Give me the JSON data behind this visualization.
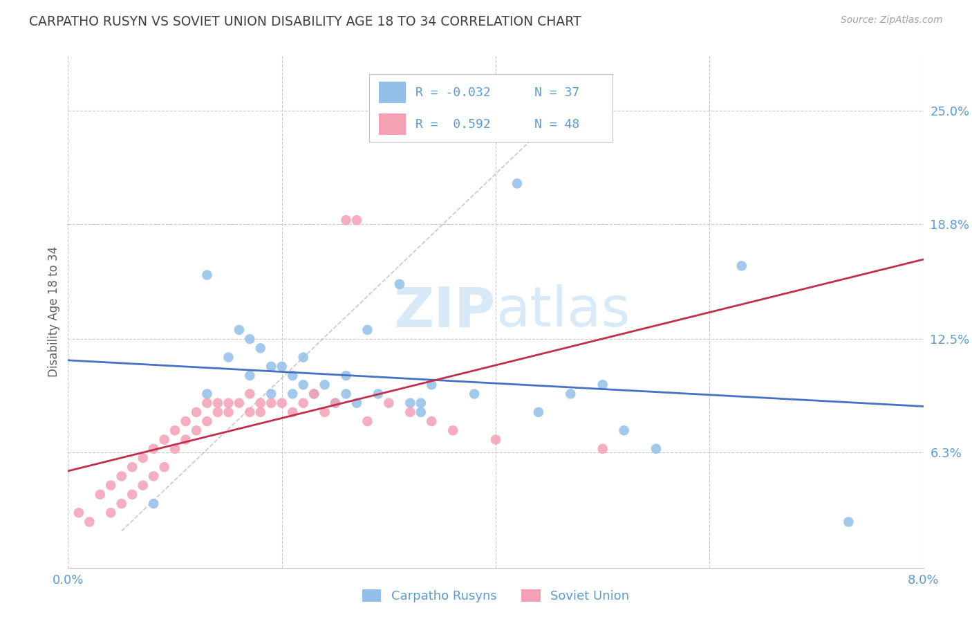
{
  "title": "CARPATHO RUSYN VS SOVIET UNION DISABILITY AGE 18 TO 34 CORRELATION CHART",
  "source": "Source: ZipAtlas.com",
  "ylabel": "Disability Age 18 to 34",
  "xlim": [
    0,
    0.08
  ],
  "ylim": [
    0,
    0.28
  ],
  "xticks": [
    0.0,
    0.02,
    0.04,
    0.06,
    0.08
  ],
  "xticklabels": [
    "0.0%",
    "",
    "",
    "",
    "8.0%"
  ],
  "yticks_right": [
    0.063,
    0.125,
    0.188,
    0.25
  ],
  "yticklabels_right": [
    "6.3%",
    "12.5%",
    "18.8%",
    "25.0%"
  ],
  "blue_color": "#92C0E8",
  "pink_color": "#F4A0B5",
  "blue_line_color": "#4472C4",
  "pink_line_color": "#C0304A",
  "grid_color": "#C8C8C8",
  "title_color": "#404040",
  "label_color": "#5B9BD5",
  "watermark_color": "#D8EAF8",
  "blue_scatter_x": [
    0.008,
    0.013,
    0.013,
    0.015,
    0.016,
    0.017,
    0.017,
    0.018,
    0.019,
    0.019,
    0.02,
    0.021,
    0.021,
    0.022,
    0.022,
    0.023,
    0.024,
    0.025,
    0.026,
    0.026,
    0.027,
    0.028,
    0.029,
    0.031,
    0.032,
    0.033,
    0.033,
    0.034,
    0.038,
    0.042,
    0.044,
    0.047,
    0.05,
    0.052,
    0.055,
    0.063,
    0.073
  ],
  "blue_scatter_y": [
    0.035,
    0.16,
    0.095,
    0.115,
    0.13,
    0.125,
    0.105,
    0.12,
    0.11,
    0.095,
    0.11,
    0.105,
    0.095,
    0.115,
    0.1,
    0.095,
    0.1,
    0.09,
    0.095,
    0.105,
    0.09,
    0.13,
    0.095,
    0.155,
    0.09,
    0.09,
    0.085,
    0.1,
    0.095,
    0.21,
    0.085,
    0.095,
    0.1,
    0.075,
    0.065,
    0.165,
    0.025
  ],
  "pink_scatter_x": [
    0.001,
    0.002,
    0.003,
    0.004,
    0.004,
    0.005,
    0.005,
    0.006,
    0.006,
    0.007,
    0.007,
    0.008,
    0.008,
    0.009,
    0.009,
    0.01,
    0.01,
    0.011,
    0.011,
    0.012,
    0.012,
    0.013,
    0.013,
    0.014,
    0.014,
    0.015,
    0.015,
    0.016,
    0.017,
    0.017,
    0.018,
    0.018,
    0.019,
    0.02,
    0.021,
    0.022,
    0.023,
    0.024,
    0.025,
    0.026,
    0.027,
    0.028,
    0.03,
    0.032,
    0.034,
    0.036,
    0.04,
    0.05
  ],
  "pink_scatter_y": [
    0.03,
    0.025,
    0.04,
    0.03,
    0.045,
    0.035,
    0.05,
    0.04,
    0.055,
    0.045,
    0.06,
    0.05,
    0.065,
    0.055,
    0.07,
    0.065,
    0.075,
    0.07,
    0.08,
    0.075,
    0.085,
    0.08,
    0.09,
    0.085,
    0.09,
    0.09,
    0.085,
    0.09,
    0.085,
    0.095,
    0.09,
    0.085,
    0.09,
    0.09,
    0.085,
    0.09,
    0.095,
    0.085,
    0.09,
    0.19,
    0.19,
    0.08,
    0.09,
    0.085,
    0.08,
    0.075,
    0.07,
    0.065
  ],
  "dash_line_x": [
    0.005,
    0.048
  ],
  "dash_line_y": [
    0.02,
    0.26
  ]
}
